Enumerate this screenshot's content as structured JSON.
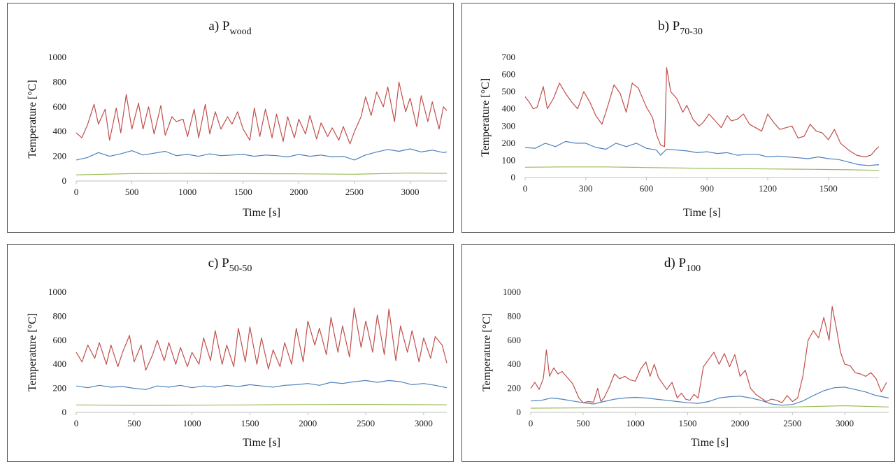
{
  "chart_data": [
    {
      "type": "line",
      "title": "a) P",
      "title_sub": "wood",
      "xlabel": "Time [s]",
      "ylabel": "Temperature [°C]",
      "xlim": [
        0,
        3330
      ],
      "ylim": [
        0,
        1000
      ],
      "xticks": [
        0,
        500,
        1000,
        1500,
        2000,
        2500,
        3000
      ],
      "yticks": [
        0,
        200,
        400,
        600,
        800,
        1000
      ],
      "grid": false,
      "series": [
        {
          "color": "#c0504d",
          "x": [
            0,
            50,
            100,
            160,
            200,
            260,
            300,
            360,
            400,
            450,
            500,
            560,
            600,
            650,
            700,
            760,
            800,
            860,
            900,
            960,
            1000,
            1060,
            1100,
            1160,
            1200,
            1250,
            1300,
            1360,
            1400,
            1450,
            1500,
            1560,
            1600,
            1650,
            1700,
            1760,
            1800,
            1860,
            1900,
            1960,
            2000,
            2060,
            2100,
            2160,
            2200,
            2260,
            2300,
            2360,
            2400,
            2460,
            2500,
            2560,
            2600,
            2650,
            2700,
            2760,
            2800,
            2860,
            2900,
            2960,
            3000,
            3060,
            3100,
            3160,
            3200,
            3260,
            3300,
            3330
          ],
          "y": [
            390,
            350,
            450,
            620,
            460,
            580,
            330,
            590,
            390,
            700,
            420,
            630,
            420,
            600,
            380,
            610,
            370,
            520,
            480,
            500,
            360,
            580,
            350,
            620,
            380,
            560,
            420,
            520,
            460,
            560,
            420,
            330,
            590,
            360,
            580,
            350,
            540,
            320,
            520,
            350,
            500,
            380,
            530,
            340,
            470,
            360,
            430,
            330,
            440,
            300,
            400,
            520,
            680,
            530,
            720,
            600,
            760,
            480,
            800,
            560,
            670,
            440,
            690,
            480,
            640,
            420,
            600,
            570
          ]
        },
        {
          "color": "#4f81bd",
          "x": [
            0,
            100,
            200,
            300,
            400,
            500,
            600,
            700,
            800,
            900,
            1000,
            1100,
            1200,
            1300,
            1400,
            1500,
            1600,
            1700,
            1800,
            1900,
            2000,
            2100,
            2200,
            2300,
            2400,
            2500,
            2600,
            2700,
            2800,
            2900,
            3000,
            3100,
            3200,
            3300,
            3330
          ],
          "y": [
            170,
            190,
            230,
            200,
            220,
            245,
            210,
            225,
            240,
            205,
            215,
            200,
            220,
            205,
            210,
            215,
            200,
            210,
            205,
            195,
            215,
            200,
            210,
            195,
            200,
            170,
            210,
            235,
            255,
            240,
            260,
            235,
            250,
            230,
            235
          ]
        },
        {
          "color": "#9bbb59",
          "x": [
            0,
            500,
            1000,
            1500,
            2000,
            2500,
            3000,
            3330
          ],
          "y": [
            50,
            60,
            62,
            60,
            58,
            55,
            65,
            62
          ]
        }
      ]
    },
    {
      "type": "line",
      "title": "b) P",
      "title_sub": "70-30",
      "xlabel": "Time [s]",
      "ylabel": "Temperature [°C]",
      "xlim": [
        0,
        1750
      ],
      "ylim": [
        0,
        700
      ],
      "xticks": [
        0,
        300,
        600,
        900,
        1200,
        1500
      ],
      "yticks": [
        0,
        100,
        200,
        300,
        400,
        500,
        600,
        700
      ],
      "grid": false,
      "series": [
        {
          "color": "#c0504d",
          "x": [
            0,
            20,
            40,
            60,
            90,
            110,
            140,
            170,
            200,
            230,
            260,
            290,
            320,
            350,
            380,
            410,
            440,
            470,
            500,
            530,
            560,
            600,
            630,
            650,
            670,
            690,
            700,
            720,
            750,
            780,
            800,
            830,
            860,
            880,
            910,
            940,
            970,
            1000,
            1020,
            1050,
            1080,
            1110,
            1140,
            1170,
            1200,
            1230,
            1260,
            1290,
            1320,
            1350,
            1380,
            1410,
            1440,
            1470,
            1500,
            1530,
            1560,
            1600,
            1640,
            1680,
            1710,
            1740,
            1750
          ],
          "y": [
            470,
            440,
            400,
            410,
            530,
            400,
            460,
            550,
            490,
            440,
            400,
            500,
            440,
            360,
            310,
            420,
            540,
            490,
            380,
            550,
            520,
            410,
            350,
            250,
            190,
            180,
            640,
            500,
            460,
            380,
            420,
            340,
            300,
            320,
            370,
            330,
            290,
            360,
            330,
            340,
            370,
            310,
            290,
            270,
            370,
            320,
            280,
            290,
            300,
            230,
            240,
            310,
            270,
            260,
            220,
            280,
            200,
            160,
            130,
            120,
            130,
            170,
            180
          ]
        },
        {
          "color": "#4f81bd",
          "x": [
            0,
            50,
            100,
            150,
            200,
            250,
            300,
            350,
            400,
            450,
            500,
            550,
            600,
            650,
            670,
            700,
            750,
            800,
            850,
            900,
            950,
            1000,
            1050,
            1100,
            1150,
            1200,
            1250,
            1300,
            1350,
            1400,
            1450,
            1500,
            1550,
            1600,
            1650,
            1700,
            1750
          ],
          "y": [
            175,
            170,
            200,
            180,
            210,
            200,
            200,
            175,
            165,
            200,
            180,
            200,
            170,
            160,
            130,
            165,
            160,
            155,
            145,
            150,
            140,
            145,
            130,
            135,
            135,
            120,
            125,
            120,
            115,
            110,
            120,
            110,
            105,
            90,
            75,
            70,
            75
          ]
        },
        {
          "color": "#9bbb59",
          "x": [
            0,
            200,
            400,
            600,
            800,
            1000,
            1200,
            1400,
            1600,
            1750
          ],
          "y": [
            60,
            62,
            62,
            58,
            55,
            52,
            50,
            48,
            45,
            42
          ]
        }
      ]
    },
    {
      "type": "line",
      "title": "c) P",
      "title_sub": "50-50",
      "xlabel": "Time [s]",
      "ylabel": "Temperature [°C]",
      "xlim": [
        0,
        3200
      ],
      "ylim": [
        0,
        1000
      ],
      "xticks": [
        0,
        500,
        1000,
        1500,
        2000,
        2500,
        3000
      ],
      "yticks": [
        0,
        200,
        400,
        600,
        800,
        1000
      ],
      "grid": false,
      "series": [
        {
          "color": "#c0504d",
          "x": [
            0,
            50,
            100,
            160,
            200,
            260,
            300,
            360,
            400,
            460,
            500,
            560,
            600,
            660,
            700,
            760,
            800,
            860,
            900,
            960,
            1000,
            1060,
            1100,
            1160,
            1200,
            1260,
            1300,
            1360,
            1400,
            1460,
            1500,
            1560,
            1600,
            1660,
            1700,
            1760,
            1800,
            1860,
            1900,
            1960,
            2000,
            2060,
            2100,
            2160,
            2200,
            2260,
            2300,
            2360,
            2400,
            2460,
            2500,
            2560,
            2600,
            2660,
            2700,
            2760,
            2800,
            2860,
            2900,
            2960,
            3000,
            3060,
            3100,
            3160,
            3200
          ],
          "y": [
            500,
            420,
            560,
            450,
            580,
            400,
            560,
            380,
            500,
            640,
            420,
            560,
            350,
            480,
            600,
            430,
            580,
            400,
            540,
            380,
            500,
            400,
            620,
            430,
            680,
            400,
            560,
            380,
            700,
            420,
            710,
            400,
            620,
            360,
            520,
            380,
            580,
            400,
            700,
            420,
            760,
            560,
            700,
            480,
            790,
            500,
            720,
            460,
            870,
            540,
            760,
            500,
            810,
            480,
            860,
            430,
            720,
            500,
            680,
            420,
            620,
            450,
            630,
            560,
            410
          ]
        },
        {
          "color": "#4f81bd",
          "x": [
            0,
            100,
            200,
            300,
            400,
            500,
            600,
            700,
            800,
            900,
            1000,
            1100,
            1200,
            1300,
            1400,
            1500,
            1600,
            1700,
            1800,
            1900,
            2000,
            2100,
            2200,
            2300,
            2400,
            2500,
            2600,
            2700,
            2800,
            2900,
            3000,
            3100,
            3200
          ],
          "y": [
            220,
            205,
            225,
            210,
            215,
            200,
            190,
            220,
            210,
            225,
            205,
            220,
            210,
            225,
            215,
            230,
            220,
            210,
            225,
            230,
            240,
            225,
            250,
            240,
            255,
            265,
            250,
            265,
            255,
            230,
            240,
            225,
            205
          ]
        },
        {
          "color": "#9bbb59",
          "x": [
            0,
            500,
            1000,
            1500,
            2000,
            2500,
            3000,
            3200
          ],
          "y": [
            62,
            58,
            60,
            62,
            65,
            66,
            64,
            62
          ]
        }
      ]
    },
    {
      "type": "line",
      "title": "d) P",
      "title_sub": "100",
      "xlabel": "Time [s]",
      "ylabel": "Temperature [°C]",
      "xlim": [
        0,
        3420
      ],
      "ylim": [
        0,
        1000
      ],
      "xticks": [
        0,
        500,
        1000,
        1500,
        2000,
        2500,
        3000
      ],
      "yticks": [
        0,
        200,
        400,
        600,
        800,
        1000
      ],
      "grid": false,
      "series": [
        {
          "color": "#c0504d",
          "x": [
            0,
            40,
            80,
            120,
            150,
            180,
            220,
            260,
            300,
            350,
            400,
            430,
            460,
            500,
            550,
            600,
            640,
            670,
            700,
            750,
            800,
            850,
            900,
            950,
            1000,
            1050,
            1100,
            1140,
            1180,
            1220,
            1260,
            1300,
            1350,
            1400,
            1440,
            1480,
            1520,
            1560,
            1600,
            1650,
            1700,
            1750,
            1800,
            1850,
            1900,
            1950,
            2000,
            2050,
            2100,
            2150,
            2200,
            2250,
            2300,
            2350,
            2400,
            2450,
            2500,
            2550,
            2600,
            2650,
            2700,
            2750,
            2800,
            2850,
            2880,
            2920,
            2960,
            3000,
            3050,
            3100,
            3150,
            3200,
            3250,
            3300,
            3350,
            3400
          ],
          "y": [
            200,
            250,
            190,
            280,
            520,
            300,
            370,
            320,
            340,
            290,
            240,
            180,
            120,
            80,
            90,
            85,
            200,
            90,
            120,
            210,
            320,
            280,
            300,
            270,
            260,
            360,
            420,
            300,
            400,
            290,
            240,
            190,
            250,
            120,
            160,
            110,
            100,
            150,
            120,
            380,
            440,
            500,
            400,
            490,
            380,
            480,
            300,
            350,
            200,
            150,
            120,
            90,
            110,
            100,
            80,
            140,
            90,
            120,
            300,
            600,
            680,
            620,
            790,
            600,
            880,
            700,
            500,
            400,
            390,
            330,
            320,
            300,
            330,
            280,
            170,
            250
          ]
        },
        {
          "color": "#4f81bd",
          "x": [
            0,
            100,
            200,
            300,
            400,
            500,
            600,
            700,
            800,
            900,
            1000,
            1100,
            1200,
            1300,
            1400,
            1500,
            1600,
            1700,
            1800,
            1900,
            2000,
            2100,
            2200,
            2300,
            2400,
            2500,
            2600,
            2700,
            2800,
            2900,
            3000,
            3100,
            3200,
            3300,
            3420
          ],
          "y": [
            95,
            100,
            120,
            110,
            95,
            80,
            70,
            90,
            110,
            120,
            125,
            120,
            110,
            100,
            90,
            80,
            75,
            90,
            120,
            130,
            135,
            120,
            100,
            70,
            60,
            65,
            95,
            140,
            180,
            205,
            210,
            190,
            170,
            140,
            120
          ]
        },
        {
          "color": "#9bbb59",
          "x": [
            0,
            500,
            1000,
            1500,
            2000,
            2500,
            3000,
            3420
          ],
          "y": [
            35,
            38,
            40,
            40,
            42,
            45,
            55,
            45
          ]
        }
      ]
    }
  ]
}
